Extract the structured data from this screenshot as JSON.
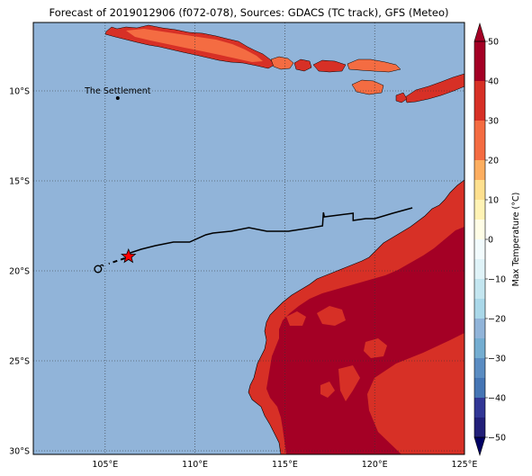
{
  "title": "Forecast of 2019012906 (f072-078), Sources: GDACS (TC track), GFS (Meteo)",
  "place_label": "The Settlement",
  "colors": {
    "ocean": "#91b4d9",
    "land_hot": "#a40025",
    "land_warm": "#d73026",
    "land_mild": "#f46c42",
    "track": "#000000",
    "star": "#ff0000"
  },
  "map": {
    "lon_range": [
      101,
      125
    ],
    "lat_range": [
      -30.2,
      -6.2
    ],
    "lon_ticks": [
      {
        "value": 105,
        "label": "105°E"
      },
      {
        "value": 110,
        "label": "110°E"
      },
      {
        "value": 115,
        "label": "115°E"
      },
      {
        "value": 120,
        "label": "120°E"
      },
      {
        "value": 125,
        "label": "125°E"
      }
    ],
    "lat_ticks": [
      {
        "value": -10,
        "label": "10°S"
      },
      {
        "value": -15,
        "label": "15°S"
      },
      {
        "value": -20,
        "label": "20°S"
      },
      {
        "value": -25,
        "label": "25°S"
      },
      {
        "value": -30,
        "label": "30°S"
      }
    ],
    "settlement": {
      "lon": 105.7,
      "lat": -10.4
    },
    "track_past": [
      [
        122.1,
        -16.5
      ],
      [
        121,
        -16.8
      ],
      [
        120,
        -17.1
      ],
      [
        119.5,
        -17.1
      ],
      [
        118.8,
        -17.2
      ],
      [
        118.8,
        -16.8
      ],
      [
        118,
        -16.9
      ],
      [
        117.2,
        -17.0
      ],
      [
        117.15,
        -16.75
      ],
      [
        117.1,
        -17.5
      ],
      [
        116.5,
        -17.6
      ],
      [
        115.2,
        -17.8
      ],
      [
        114.0,
        -17.8
      ],
      [
        113.0,
        -17.6
      ],
      [
        112.0,
        -17.8
      ],
      [
        111.0,
        -17.9
      ],
      [
        110.6,
        -18.0
      ],
      [
        109.7,
        -18.4
      ],
      [
        108.8,
        -18.4
      ],
      [
        107.8,
        -18.6
      ],
      [
        107.0,
        -18.8
      ],
      [
        106.4,
        -19.0
      ]
    ],
    "track_forecast": [
      [
        106.1,
        -19.3
      ],
      [
        105.2,
        -19.6
      ]
    ],
    "current_position": {
      "lon": 106.3,
      "lat": -19.2
    },
    "forecast_position": {
      "lon": 104.6,
      "lat": -19.9
    }
  },
  "colorbar": {
    "label": "Max Temperature (°C)",
    "ticks": [
      {
        "value": 50,
        "label": "50"
      },
      {
        "value": 40,
        "label": "40"
      },
      {
        "value": 30,
        "label": "30"
      },
      {
        "value": 20,
        "label": "20"
      },
      {
        "value": 10,
        "label": "10"
      },
      {
        "value": 0,
        "label": "0"
      },
      {
        "value": -10,
        "label": "−10"
      },
      {
        "value": -20,
        "label": "−20"
      },
      {
        "value": -30,
        "label": "−30"
      },
      {
        "value": -40,
        "label": "−40"
      },
      {
        "value": -50,
        "label": "−50"
      }
    ],
    "bands": [
      {
        "from": 45,
        "to": 50,
        "color": "#a40025"
      },
      {
        "from": 40,
        "to": 45,
        "color": "#a40025"
      },
      {
        "from": 35,
        "to": 40,
        "color": "#d73026"
      },
      {
        "from": 30,
        "to": 35,
        "color": "#d73026"
      },
      {
        "from": 25,
        "to": 30,
        "color": "#f46c42"
      },
      {
        "from": 20,
        "to": 25,
        "color": "#f46c42"
      },
      {
        "from": 15,
        "to": 20,
        "color": "#fdae60"
      },
      {
        "from": 10,
        "to": 15,
        "color": "#fee08f"
      },
      {
        "from": 5,
        "to": 10,
        "color": "#fff3b5"
      },
      {
        "from": 0,
        "to": 5,
        "color": "#fffde6"
      },
      {
        "from": -5,
        "to": 0,
        "color": "#f2fbfd"
      },
      {
        "from": -10,
        "to": -5,
        "color": "#e0f3f8"
      },
      {
        "from": -15,
        "to": -10,
        "color": "#c4e6f0"
      },
      {
        "from": -20,
        "to": -15,
        "color": "#aad8e9"
      },
      {
        "from": -25,
        "to": -20,
        "color": "#91b4d9"
      },
      {
        "from": -30,
        "to": -25,
        "color": "#74add1"
      },
      {
        "from": -35,
        "to": -30,
        "color": "#5a8cc2"
      },
      {
        "from": -40,
        "to": -35,
        "color": "#4575b4"
      },
      {
        "from": -45,
        "to": -40,
        "color": "#313695"
      },
      {
        "from": -50,
        "to": -45,
        "color": "#221f79"
      }
    ],
    "over_color": "#a40025",
    "under_color": "#000064"
  }
}
